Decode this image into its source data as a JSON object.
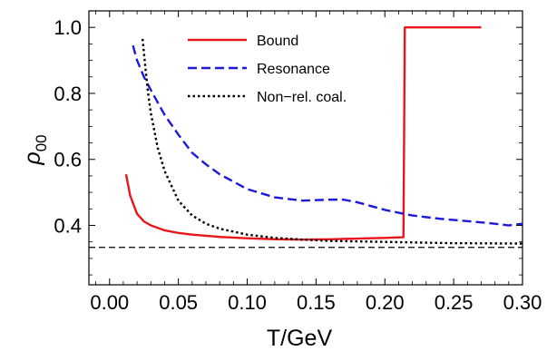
{
  "chart_data": {
    "type": "line",
    "xlabel": "T/GeV",
    "ylabel": "ρ",
    "ylabel_sub": "00",
    "xlim": [
      -0.015,
      0.3
    ],
    "ylim": [
      0.22,
      1.05
    ],
    "xticks": [
      0.0,
      0.05,
      0.1,
      0.15,
      0.2,
      0.25,
      0.3
    ],
    "xtick_labels": [
      "0.00",
      "0.05",
      "0.10",
      "0.15",
      "0.20",
      "0.25",
      "0.30"
    ],
    "yticks": [
      0.4,
      0.6,
      0.8,
      1.0
    ],
    "ytick_labels": [
      "0.4",
      "0.6",
      "0.8",
      "1.0"
    ],
    "grid": false,
    "legend_position": "top-center",
    "reference_line": {
      "y": 0.3333,
      "style": "dashed",
      "color": "#000000"
    },
    "series": [
      {
        "name": "Bound",
        "color": "#e8161a",
        "dash": "solid",
        "x": [
          0.012,
          0.015,
          0.02,
          0.025,
          0.03,
          0.04,
          0.05,
          0.06,
          0.08,
          0.1,
          0.12,
          0.14,
          0.16,
          0.18,
          0.2,
          0.213,
          0.2135,
          0.2145,
          0.24,
          0.27
        ],
        "y": [
          0.555,
          0.49,
          0.435,
          0.412,
          0.4,
          0.385,
          0.377,
          0.372,
          0.365,
          0.361,
          0.358,
          0.357,
          0.358,
          0.36,
          0.362,
          0.364,
          0.364,
          1.0,
          1.0,
          1.0
        ]
      },
      {
        "name": "Resonance",
        "color": "#1a1adb",
        "dash": "dashed",
        "x": [
          0.017,
          0.02,
          0.025,
          0.03,
          0.04,
          0.05,
          0.06,
          0.07,
          0.08,
          0.1,
          0.12,
          0.14,
          0.16,
          0.17,
          0.18,
          0.2,
          0.22,
          0.24,
          0.26,
          0.28,
          0.29,
          0.3
        ],
        "y": [
          0.945,
          0.9,
          0.85,
          0.81,
          0.735,
          0.675,
          0.62,
          0.585,
          0.555,
          0.51,
          0.485,
          0.475,
          0.478,
          0.478,
          0.47,
          0.447,
          0.43,
          0.42,
          0.413,
          0.405,
          0.4,
          0.405
        ]
      },
      {
        "name": "Non−rel. coal.",
        "color": "#000000",
        "dash": "dotted",
        "x": [
          0.024,
          0.026,
          0.028,
          0.03,
          0.035,
          0.04,
          0.05,
          0.06,
          0.07,
          0.08,
          0.1,
          0.12,
          0.14,
          0.16,
          0.2,
          0.25,
          0.3
        ],
        "y": [
          0.965,
          0.88,
          0.8,
          0.74,
          0.635,
          0.565,
          0.475,
          0.43,
          0.405,
          0.39,
          0.372,
          0.362,
          0.357,
          0.353,
          0.35,
          0.346,
          0.345
        ]
      }
    ]
  }
}
